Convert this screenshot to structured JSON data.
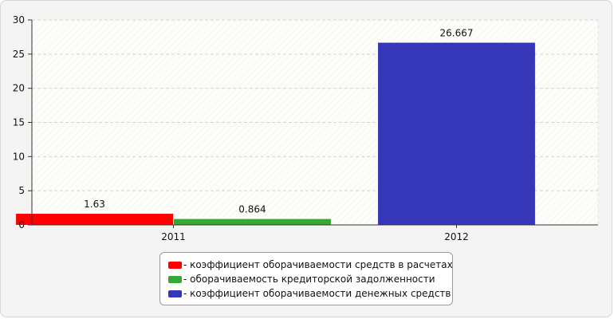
{
  "chart_data": {
    "type": "bar",
    "categories": [
      "2011",
      "2012"
    ],
    "y_ticks": [
      0,
      5,
      10,
      15,
      20,
      25,
      30
    ],
    "ylim": [
      0,
      30
    ],
    "grid": true,
    "legend_position": "bottom-center",
    "series": [
      {
        "name": "- коэффициент оборачиваемости средств в расчетах",
        "color": "#ff0000",
        "points": [
          {
            "category": "2011",
            "value": 1.63,
            "label": "1.63"
          }
        ]
      },
      {
        "name": "- оборачиваемость кредиторской задолженности",
        "color": "#33aa33",
        "points": [
          {
            "category": "2011",
            "value": 0.864,
            "label": "0.864"
          }
        ]
      },
      {
        "name": "- коэффициент оборачиваемости денежных средств",
        "color": "#3636b8",
        "points": [
          {
            "category": "2012",
            "value": 26.667,
            "label": "26.667"
          }
        ]
      }
    ]
  }
}
